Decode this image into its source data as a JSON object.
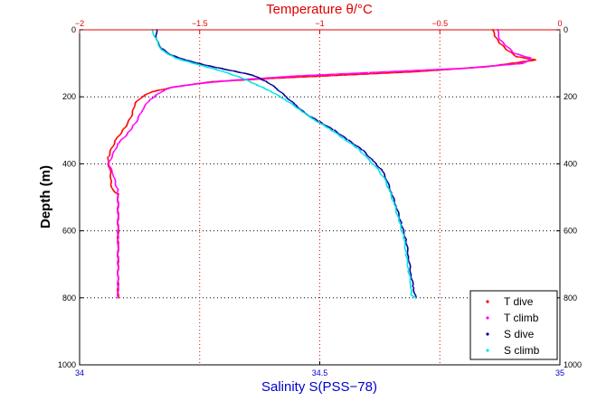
{
  "chart_data": {
    "type": "scatter",
    "title": "",
    "top_axis": {
      "label": "Temperature θ/°C",
      "range": [
        -2,
        0
      ],
      "ticks": [
        -2,
        -1.5,
        -1,
        -0.5,
        0
      ],
      "tick_labels": [
        "−2",
        "−1.5",
        "−1",
        "−0.5",
        "0"
      ],
      "color": "#e00000"
    },
    "bottom_axis": {
      "label": "Salinity S(PSS−78)",
      "range": [
        34,
        35
      ],
      "ticks": [
        34,
        34.5,
        35
      ],
      "tick_labels": [
        "34",
        "34.5",
        "35"
      ],
      "color": "#0000cc"
    },
    "y_axis": {
      "label": "Depth (m)",
      "range": [
        0,
        1000
      ],
      "inverted": true,
      "ticks": [
        0,
        200,
        400,
        600,
        800,
        1000
      ],
      "tick_labels": [
        "0",
        "200",
        "400",
        "600",
        "800",
        "1000"
      ]
    },
    "grid": true,
    "legend_position": "bottom-right",
    "series": [
      {
        "name": "T dive",
        "axis": "temperature",
        "color": "#ff0000",
        "points": [
          [
            -0.28,
            0
          ],
          [
            -0.27,
            20
          ],
          [
            -0.25,
            40
          ],
          [
            -0.22,
            60
          ],
          [
            -0.18,
            80
          ],
          [
            -0.1,
            90
          ],
          [
            -0.3,
            110
          ],
          [
            -0.6,
            125
          ],
          [
            -0.9,
            135
          ],
          [
            -1.2,
            145
          ],
          [
            -1.45,
            155
          ],
          [
            -1.6,
            170
          ],
          [
            -1.7,
            185
          ],
          [
            -1.74,
            200
          ],
          [
            -1.77,
            220
          ],
          [
            -1.78,
            250
          ],
          [
            -1.8,
            280
          ],
          [
            -1.82,
            300
          ],
          [
            -1.85,
            330
          ],
          [
            -1.87,
            360
          ],
          [
            -1.88,
            380
          ],
          [
            -1.88,
            400
          ],
          [
            -1.87,
            430
          ],
          [
            -1.87,
            460
          ],
          [
            -1.86,
            480
          ],
          [
            -1.84,
            490
          ],
          [
            -1.84,
            520
          ],
          [
            -1.84,
            560
          ],
          [
            -1.84,
            600
          ],
          [
            -1.84,
            650
          ],
          [
            -1.84,
            700
          ],
          [
            -1.84,
            750
          ],
          [
            -1.84,
            800
          ]
        ]
      },
      {
        "name": "T climb",
        "axis": "temperature",
        "color": "#ff00ff",
        "points": [
          [
            -0.26,
            0
          ],
          [
            -0.25,
            30
          ],
          [
            -0.22,
            50
          ],
          [
            -0.19,
            70
          ],
          [
            -0.12,
            85
          ],
          [
            -0.15,
            100
          ],
          [
            -0.4,
            115
          ],
          [
            -0.8,
            128
          ],
          [
            -1.1,
            138
          ],
          [
            -1.35,
            150
          ],
          [
            -1.5,
            160
          ],
          [
            -1.62,
            172
          ],
          [
            -1.66,
            185
          ],
          [
            -1.71,
            210
          ],
          [
            -1.74,
            240
          ],
          [
            -1.76,
            270
          ],
          [
            -1.78,
            290
          ],
          [
            -1.8,
            310
          ],
          [
            -1.84,
            340
          ],
          [
            -1.86,
            370
          ],
          [
            -1.88,
            400
          ],
          [
            -1.86,
            430
          ],
          [
            -1.85,
            460
          ],
          [
            -1.84,
            480
          ],
          [
            -1.84,
            500
          ],
          [
            -1.84,
            560
          ],
          [
            -1.84,
            620
          ],
          [
            -1.84,
            680
          ],
          [
            -1.84,
            740
          ],
          [
            -1.84,
            800
          ]
        ]
      },
      {
        "name": "S dive",
        "axis": "salinity",
        "color": "#000099",
        "points": [
          [
            34.16,
            0
          ],
          [
            34.16,
            30
          ],
          [
            34.17,
            55
          ],
          [
            34.19,
            75
          ],
          [
            34.22,
            90
          ],
          [
            34.26,
            105
          ],
          [
            34.31,
            120
          ],
          [
            34.36,
            135
          ],
          [
            34.39,
            155
          ],
          [
            34.41,
            175
          ],
          [
            34.43,
            200
          ],
          [
            34.45,
            225
          ],
          [
            34.47,
            250
          ],
          [
            34.5,
            275
          ],
          [
            34.53,
            300
          ],
          [
            34.56,
            330
          ],
          [
            34.59,
            360
          ],
          [
            34.61,
            390
          ],
          [
            34.63,
            420
          ],
          [
            34.64,
            450
          ],
          [
            34.65,
            490
          ],
          [
            34.66,
            530
          ],
          [
            34.67,
            580
          ],
          [
            34.68,
            630
          ],
          [
            34.685,
            680
          ],
          [
            34.69,
            730
          ],
          [
            34.695,
            770
          ],
          [
            34.7,
            800
          ]
        ]
      },
      {
        "name": "S climb",
        "axis": "salinity",
        "color": "#00e5e5",
        "points": [
          [
            34.15,
            0
          ],
          [
            34.16,
            30
          ],
          [
            34.17,
            60
          ],
          [
            34.2,
            85
          ],
          [
            34.25,
            105
          ],
          [
            34.3,
            125
          ],
          [
            34.34,
            145
          ],
          [
            34.37,
            165
          ],
          [
            34.4,
            185
          ],
          [
            34.43,
            210
          ],
          [
            34.46,
            240
          ],
          [
            34.49,
            270
          ],
          [
            34.52,
            295
          ],
          [
            34.55,
            325
          ],
          [
            34.58,
            355
          ],
          [
            34.6,
            385
          ],
          [
            34.62,
            415
          ],
          [
            34.635,
            445
          ],
          [
            34.645,
            480
          ],
          [
            34.655,
            520
          ],
          [
            34.665,
            570
          ],
          [
            34.675,
            620
          ],
          [
            34.68,
            670
          ],
          [
            34.685,
            720
          ],
          [
            34.69,
            760
          ],
          [
            34.69,
            790
          ],
          [
            34.7,
            800
          ]
        ]
      }
    ]
  }
}
